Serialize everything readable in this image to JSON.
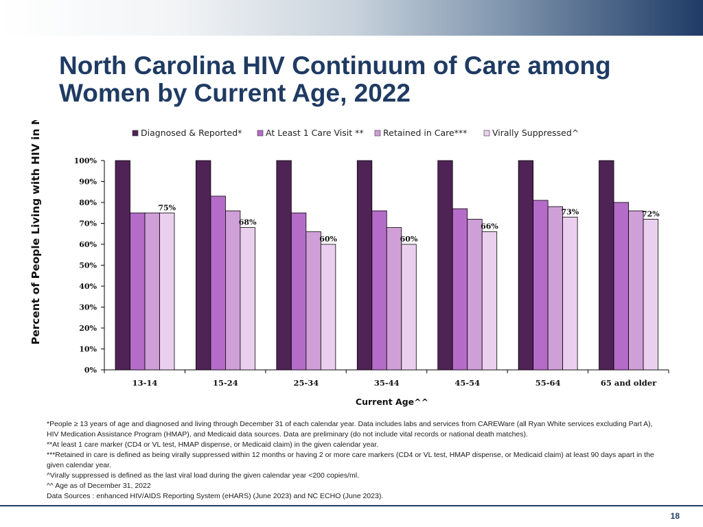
{
  "slide": {
    "title_line1": "North Carolina HIV Continuum of Care among",
    "title_line2": "Women by Current Age, 2022",
    "page_number": "18"
  },
  "colors": {
    "title": "#1f3b63",
    "series": [
      "#4f2356",
      "#b56cc8",
      "#cf9fd8",
      "#ead0ee"
    ]
  },
  "chart_data": {
    "type": "bar",
    "title": "",
    "xlabel": "Current Age^^",
    "ylabel": "Percent of People Living with HIV in NC",
    "ylim": [
      0,
      100
    ],
    "yticks": [
      "0%",
      "10%",
      "20%",
      "30%",
      "40%",
      "50%",
      "60%",
      "70%",
      "80%",
      "90%",
      "100%"
    ],
    "categories": [
      "13-14",
      "15-24",
      "25-34",
      "35-44",
      "45-54",
      "55-64",
      "65 and older"
    ],
    "legend_position": "top",
    "series": [
      {
        "name": "Diagnosed & Reported*",
        "values": [
          100,
          100,
          100,
          100,
          100,
          100,
          100
        ]
      },
      {
        "name": "At Least 1 Care Visit **",
        "values": [
          75,
          83,
          75,
          76,
          77,
          81,
          80
        ]
      },
      {
        "name": "Retained in Care***",
        "values": [
          75,
          76,
          66,
          68,
          72,
          78,
          76
        ]
      },
      {
        "name": "Virally Suppressed^",
        "values": [
          75,
          68,
          60,
          60,
          66,
          73,
          72
        ],
        "labels": [
          "75%",
          "68%",
          "60%",
          "60%",
          "66%",
          "73%",
          "72%"
        ]
      }
    ]
  },
  "footnotes": [
    "*People ≥ 13 years of age and diagnosed and living through December 31 of each calendar year. Data includes labs and services from CAREWare (all Ryan White services excluding Part A),",
    "HIV Medication Assistance Program (HMAP), and Medicaid data sources. Data are preliminary (do not include vital records or national death matches).",
    "**At least 1 care marker (CD4 or VL test, HMAP dispense, or Medicaid claim) in the given calendar year.",
    "***Retained in care is defined as being virally suppressed within 12 months or having 2 or more care markers (CD4 or VL test, HMAP dispense, or Medicaid claim) at least 90 days apart in the",
    "given calendar year.",
    "^Virally suppressed is defined as the last viral load during the given calendar year <200 copies/ml.",
    "^^ Age as of December 31, 2022",
    "Data Sources : enhanced HIV/AIDS Reporting System (eHARS) (June 2023) and NC ECHO (June 2023)."
  ]
}
